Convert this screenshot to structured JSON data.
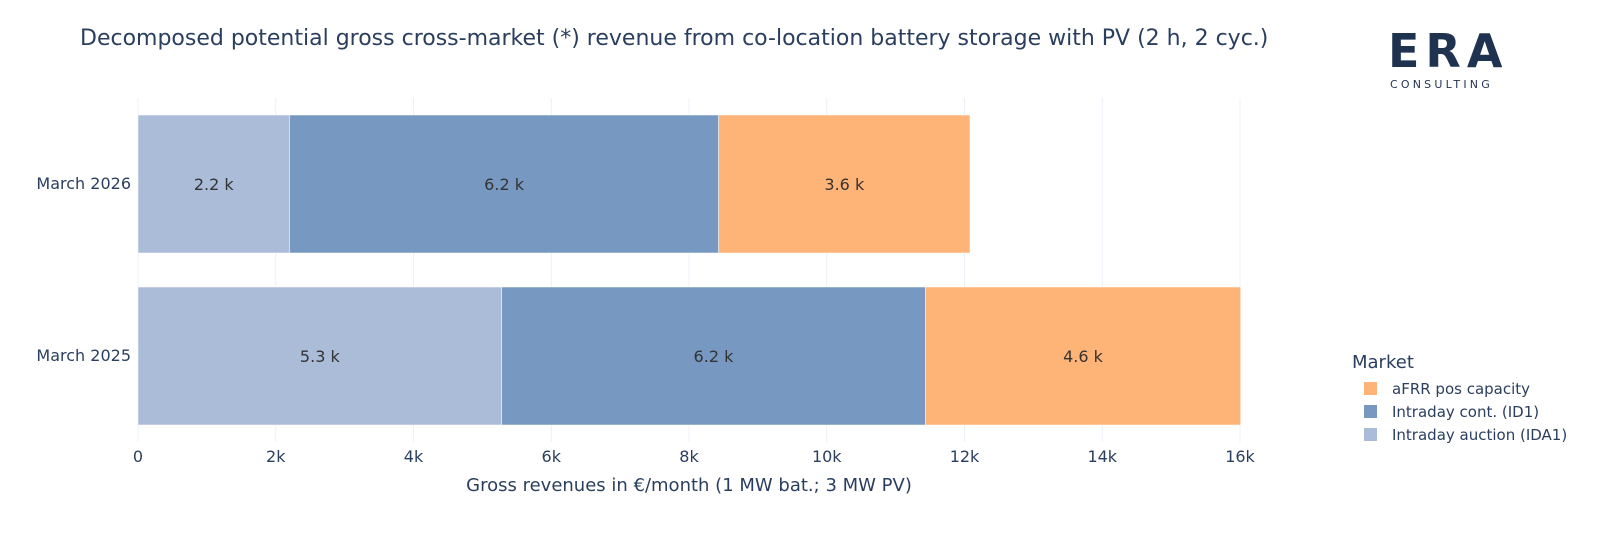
{
  "title": "Decomposed potential gross cross-market (*) revenue from co-location battery storage with PV (2 h, 2 cyc.)",
  "logo": {
    "mark": "ERA",
    "sub": "CONSULTING"
  },
  "legend": {
    "title": "Market",
    "items": [
      {
        "label": "aFRR pos capacity",
        "color": "#ffb477"
      },
      {
        "label": "Intraday cont. (ID1)",
        "color": "#7799c1"
      },
      {
        "label": "Intraday auction (IDA1)",
        "color": "#aabcd8"
      }
    ]
  },
  "chart_data": {
    "type": "bar",
    "orientation": "horizontal",
    "stacked": true,
    "title": "Decomposed potential gross cross-market (*) revenue from co-location battery storage with PV (2 h, 2 cyc.)",
    "xlabel": "Gross revenues in €/month (1 MW bat.; 3 MW PV)",
    "ylabel": "",
    "xlim": [
      0,
      16000
    ],
    "x_ticks": [
      {
        "value": 0,
        "label": "0"
      },
      {
        "value": 2000,
        "label": "2k"
      },
      {
        "value": 4000,
        "label": "4k"
      },
      {
        "value": 6000,
        "label": "6k"
      },
      {
        "value": 8000,
        "label": "8k"
      },
      {
        "value": 10000,
        "label": "10k"
      },
      {
        "value": 12000,
        "label": "12k"
      },
      {
        "value": 14000,
        "label": "14k"
      },
      {
        "value": 16000,
        "label": "16k"
      }
    ],
    "categories": [
      "March 2026",
      "March 2025"
    ],
    "grid": true,
    "legend_position": "right",
    "series": [
      {
        "name": "Intraday auction (IDA1)",
        "color": "#aabcd8",
        "values": [
          2200,
          5280
        ],
        "labels": [
          "2.2 k",
          "5.3 k"
        ]
      },
      {
        "name": "Intraday cont. (ID1)",
        "color": "#7799c1",
        "values": [
          6230,
          6150
        ],
        "labels": [
          "6.2 k",
          "6.2 k"
        ]
      },
      {
        "name": "aFRR pos capacity",
        "color": "#ffb477",
        "values": [
          3650,
          4580
        ],
        "labels": [
          "3.6 k",
          "4.6 k"
        ]
      }
    ]
  }
}
